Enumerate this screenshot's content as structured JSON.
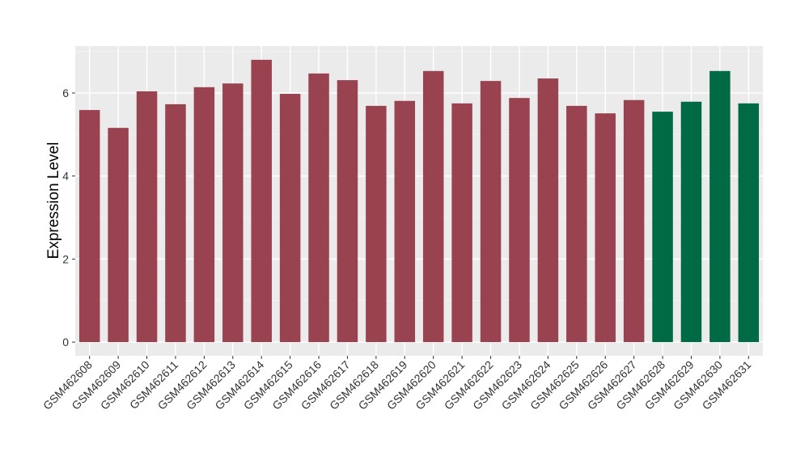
{
  "chart_data": {
    "type": "bar",
    "y_label": "Expression Level",
    "categories": [
      "GSM462608",
      "GSM462609",
      "GSM462610",
      "GSM462611",
      "GSM462612",
      "GSM462613",
      "GSM462614",
      "GSM462615",
      "GSM462616",
      "GSM462617",
      "GSM462618",
      "GSM462619",
      "GSM462620",
      "GSM462621",
      "GSM462622",
      "GSM462623",
      "GSM462624",
      "GSM462625",
      "GSM462626",
      "GSM462627",
      "GSM462628",
      "GSM462629",
      "GSM462630",
      "GSM462631"
    ],
    "values": [
      5.59,
      5.16,
      6.04,
      5.73,
      6.14,
      6.23,
      6.8,
      5.98,
      6.47,
      6.31,
      5.69,
      5.81,
      6.53,
      5.75,
      6.29,
      5.88,
      6.35,
      5.69,
      5.51,
      5.83,
      5.55,
      5.79,
      6.53,
      5.75
    ],
    "colors": [
      "#994350",
      "#994350",
      "#994350",
      "#994350",
      "#994350",
      "#994350",
      "#994350",
      "#994350",
      "#994350",
      "#994350",
      "#994350",
      "#994350",
      "#994350",
      "#994350",
      "#994350",
      "#994350",
      "#994350",
      "#994350",
      "#994350",
      "#994350",
      "#006a44",
      "#006a44",
      "#006a44",
      "#006a44"
    ],
    "ylim": [
      -0.33,
      7.13
    ],
    "yticks": [
      0,
      2,
      4,
      6
    ],
    "grid": true
  }
}
